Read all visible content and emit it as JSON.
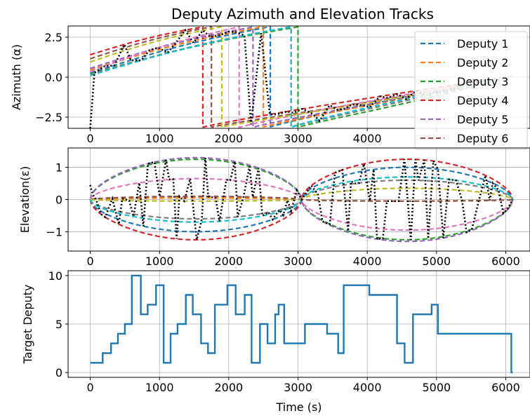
{
  "figure": {
    "title": "Deputy Azimuth and Elevation Tracks"
  },
  "chart_data": [
    {
      "type": "line",
      "ylabel": "Azimuth (α)",
      "xlim": [
        -320,
        6350
      ],
      "ylim": [
        -3.2,
        3.2
      ],
      "xticks": [
        0,
        1000,
        2000,
        3000,
        4000,
        5000,
        6000
      ],
      "xtick_labels": [
        "0",
        "1000",
        "2000",
        "3000",
        "4000",
        "5000",
        "6000"
      ],
      "xticks_visible": [
        "0",
        "1000",
        "2000",
        "3000",
        "4000"
      ],
      "yticks": [
        -2.5,
        0.0,
        2.5
      ],
      "ytick_labels": [
        "−2.5",
        "0.0",
        "2.5"
      ],
      "grid": true,
      "legend_position": "top-right",
      "legend": [
        "Deputy 1",
        "Deputy 2",
        "Deputy 3",
        "Deputy 4",
        "Deputy 5",
        "Deputy 6"
      ],
      "series": [
        {
          "name": "Deputy 1",
          "color": "#1f77b4",
          "style": "dashed",
          "start": 0.25,
          "wrap_time": 2580
        },
        {
          "name": "Deputy 2",
          "color": "#ff7f0e",
          "style": "dashed",
          "start": 0.45,
          "wrap_time": 2480
        },
        {
          "name": "Deputy 3",
          "color": "#2ca02c",
          "style": "dashed",
          "start": 0.2,
          "wrap_time": 3000
        },
        {
          "name": "Deputy 4",
          "color": "#d62728",
          "style": "dashed",
          "start": 1.4,
          "wrap_time": 1620
        },
        {
          "name": "Deputy 5",
          "color": "#9467bd",
          "style": "dashed",
          "start": 0.55,
          "wrap_time": 2350
        },
        {
          "name": "Deputy 6",
          "color": "#8c564b",
          "style": "dashed",
          "start": 1.15,
          "wrap_time": 1740
        },
        {
          "color": "#e377c2",
          "style": "dashed",
          "start": 0.35,
          "wrap_time": 2150
        },
        {
          "color": "#7f7f7f",
          "style": "dashed",
          "start": 0.15,
          "wrap_time": 2900
        },
        {
          "color": "#bcbd22",
          "style": "dashed",
          "start": 0.95,
          "wrap_time": 1880
        },
        {
          "color": "#17becf",
          "style": "dashed",
          "start": 0.1,
          "wrap_time": 2890
        }
      ],
      "target_track": {
        "color": "#000000",
        "style": "dotted"
      }
    },
    {
      "type": "line",
      "ylabel": "Elevation(ε)",
      "xlim": [
        -320,
        6350
      ],
      "ylim": [
        -1.6,
        1.6
      ],
      "xticks": [
        0,
        1000,
        2000,
        3000,
        4000,
        5000,
        6000
      ],
      "xtick_labels": [
        "0",
        "1000",
        "2000",
        "3000",
        "4000",
        "5000",
        "6000"
      ],
      "yticks": [
        -1,
        0,
        1
      ],
      "ytick_labels": [
        "−1",
        "0",
        "1"
      ],
      "grid": true,
      "node_times": [
        0,
        3050,
        6100
      ],
      "series": [
        {
          "color": "#1f77b4",
          "style": "dashed",
          "amp1": -1.0,
          "amp2": 1.0
        },
        {
          "color": "#ff7f0e",
          "style": "dashed",
          "amp1": 0.05,
          "amp2": -0.05
        },
        {
          "color": "#2ca02c",
          "style": "dashed",
          "amp1": 1.25,
          "amp2": -1.25
        },
        {
          "color": "#d62728",
          "style": "dashed",
          "amp1": -1.25,
          "amp2": 1.25
        },
        {
          "color": "#9467bd",
          "style": "dashed",
          "amp1": 1.3,
          "amp2": -1.3
        },
        {
          "color": "#8c564b",
          "style": "dashed",
          "amp1": 0.1,
          "amp2": -0.05
        },
        {
          "color": "#e377c2",
          "style": "dashed",
          "amp1": 0.65,
          "amp2": -0.95
        },
        {
          "color": "#7f7f7f",
          "style": "dashed",
          "amp1": -0.6,
          "amp2": 0.6
        },
        {
          "color": "#bcbd22",
          "style": "dashed",
          "amp1": -0.05,
          "amp2": 0.35
        },
        {
          "color": "#17becf",
          "style": "dashed",
          "amp1": -0.7,
          "amp2": 0.7
        }
      ],
      "target_track": {
        "color": "#000000",
        "style": "dotted"
      }
    },
    {
      "type": "line",
      "xlabel": "Time (s)",
      "ylabel": "Target Deputy",
      "xlim": [
        -320,
        6350
      ],
      "ylim": [
        -0.5,
        10.5
      ],
      "xticks": [
        0,
        1000,
        2000,
        3000,
        4000,
        5000,
        6000
      ],
      "xtick_labels": [
        "0",
        "1000",
        "2000",
        "3000",
        "4000",
        "5000",
        "6000"
      ],
      "yticks": [
        0,
        5,
        10
      ],
      "ytick_labels": [
        "0",
        "5",
        "10"
      ],
      "grid": true,
      "series": [
        {
          "color": "#1f77b4",
          "style": "step",
          "points": [
            [
              0,
              1
            ],
            [
              180,
              1
            ],
            [
              180,
              2
            ],
            [
              300,
              2
            ],
            [
              300,
              3
            ],
            [
              400,
              3
            ],
            [
              400,
              4
            ],
            [
              500,
              4
            ],
            [
              500,
              5
            ],
            [
              600,
              5
            ],
            [
              600,
              10
            ],
            [
              730,
              10
            ],
            [
              730,
              6
            ],
            [
              830,
              6
            ],
            [
              830,
              7
            ],
            [
              950,
              7
            ],
            [
              950,
              9
            ],
            [
              1060,
              9
            ],
            [
              1060,
              1
            ],
            [
              1160,
              1
            ],
            [
              1160,
              4
            ],
            [
              1260,
              4
            ],
            [
              1260,
              5
            ],
            [
              1380,
              5
            ],
            [
              1380,
              8
            ],
            [
              1480,
              8
            ],
            [
              1480,
              6
            ],
            [
              1600,
              6
            ],
            [
              1600,
              3
            ],
            [
              1700,
              3
            ],
            [
              1700,
              2
            ],
            [
              1800,
              2
            ],
            [
              1800,
              7
            ],
            [
              1980,
              7
            ],
            [
              1980,
              9
            ],
            [
              2100,
              9
            ],
            [
              2100,
              6
            ],
            [
              2230,
              6
            ],
            [
              2230,
              8
            ],
            [
              2330,
              8
            ],
            [
              2330,
              1
            ],
            [
              2450,
              1
            ],
            [
              2450,
              5
            ],
            [
              2560,
              5
            ],
            [
              2560,
              3
            ],
            [
              2670,
              3
            ],
            [
              2670,
              6
            ],
            [
              2720,
              6
            ],
            [
              2720,
              7
            ],
            [
              2800,
              7
            ],
            [
              2800,
              3
            ],
            [
              3100,
              3
            ],
            [
              3100,
              5
            ],
            [
              3420,
              5
            ],
            [
              3420,
              4
            ],
            [
              3580,
              4
            ],
            [
              3580,
              2
            ],
            [
              3660,
              2
            ],
            [
              3660,
              9
            ],
            [
              4030,
              9
            ],
            [
              4030,
              8
            ],
            [
              4430,
              8
            ],
            [
              4430,
              3
            ],
            [
              4540,
              3
            ],
            [
              4540,
              1
            ],
            [
              4660,
              1
            ],
            [
              4660,
              6
            ],
            [
              4930,
              6
            ],
            [
              4930,
              7
            ],
            [
              5020,
              7
            ],
            [
              5020,
              4
            ],
            [
              6080,
              4
            ],
            [
              6080,
              0
            ],
            [
              6100,
              0
            ]
          ]
        }
      ]
    }
  ]
}
